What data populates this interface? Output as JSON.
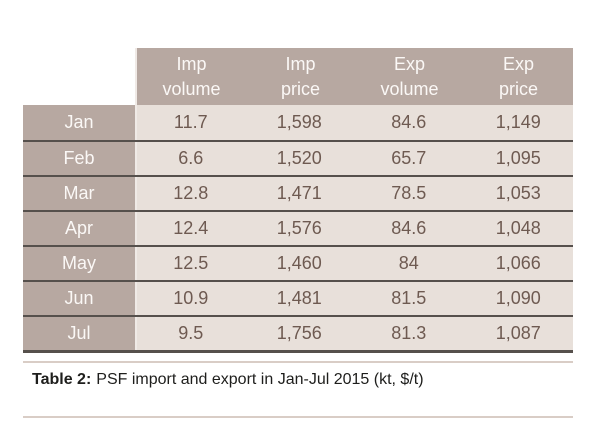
{
  "colors": {
    "header_bg": "#b7a8a1",
    "cell_bg": "#e8e0da",
    "row_line": "#56504c",
    "cell_text": "#6e5a51",
    "header_text": "#fbf8f6",
    "caption_rule": "#d9cdc6",
    "caption_text": "#1e1e1c",
    "gap_line": "#f0eae6"
  },
  "table": {
    "column_headers": [
      "Imp\nvolume",
      "Imp\nprice",
      "Exp\nvolume",
      "Exp\nprice"
    ],
    "rows": [
      {
        "label": "Jan",
        "values": [
          "11.7",
          "1,598",
          "84.6",
          "1,149"
        ]
      },
      {
        "label": "Feb",
        "values": [
          "6.6",
          "1,520",
          "65.7",
          "1,095"
        ]
      },
      {
        "label": "Mar",
        "values": [
          "12.8",
          "1,471",
          "78.5",
          "1,053"
        ]
      },
      {
        "label": "Apr",
        "values": [
          "12.4",
          "1,576",
          "84.6",
          "1,048"
        ]
      },
      {
        "label": "May",
        "values": [
          "12.5",
          "1,460",
          "84",
          "1,066"
        ]
      },
      {
        "label": "Jun",
        "values": [
          "10.9",
          "1,481",
          "81.5",
          "1,090"
        ]
      },
      {
        "label": "Jul",
        "values": [
          "9.5",
          "1,756",
          "81.3",
          "1,087"
        ]
      }
    ]
  },
  "caption": {
    "label": "Table 2:",
    "text": "PSF import and export in Jan-Jul 2015 (kt, $/t)"
  },
  "chart_data": {
    "type": "table",
    "title": "Table 2: PSF import and export in Jan-Jul 2015 (kt, $/t)",
    "columns": [
      "Month",
      "Imp volume",
      "Imp price",
      "Exp volume",
      "Exp price"
    ],
    "units": {
      "volume": "kt",
      "price": "$/t"
    },
    "rows": [
      [
        "Jan",
        11.7,
        1598,
        84.6,
        1149
      ],
      [
        "Feb",
        6.6,
        1520,
        65.7,
        1095
      ],
      [
        "Mar",
        12.8,
        1471,
        78.5,
        1053
      ],
      [
        "Apr",
        12.4,
        1576,
        84.6,
        1048
      ],
      [
        "May",
        12.5,
        1460,
        84,
        1066
      ],
      [
        "Jun",
        10.9,
        1481,
        81.5,
        1090
      ],
      [
        "Jul",
        9.5,
        1756,
        81.3,
        1087
      ]
    ]
  }
}
